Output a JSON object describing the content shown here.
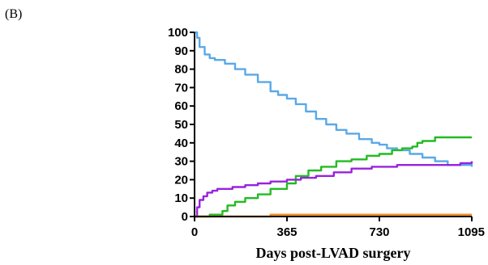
{
  "panel_label": "(B)",
  "chart_data": {
    "type": "line",
    "title": "",
    "xlabel": "Days post-LVAD surgery",
    "ylabel": "",
    "xlim": [
      0,
      1095
    ],
    "ylim": [
      0,
      100
    ],
    "x_ticks": [
      0,
      365,
      730,
      1095
    ],
    "y_ticks": [
      0,
      10,
      20,
      30,
      40,
      50,
      60,
      70,
      80,
      90,
      100
    ],
    "grid": false,
    "legend": "none",
    "series": [
      {
        "color": "#5aa8e8",
        "x": [
          0,
          10,
          20,
          40,
          60,
          80,
          120,
          160,
          200,
          250,
          300,
          330,
          365,
          400,
          440,
          480,
          520,
          560,
          600,
          650,
          700,
          730,
          760,
          800,
          850,
          900,
          950,
          1000,
          1050,
          1095
        ],
        "y": [
          100,
          97,
          92,
          88,
          86,
          85,
          83,
          80,
          77,
          73,
          68,
          66,
          64,
          61,
          57,
          53,
          50,
          47,
          45,
          42,
          40,
          39,
          37,
          36,
          34,
          32,
          30,
          28,
          28,
          27
        ]
      },
      {
        "color": "#22bb22",
        "x": [
          0,
          30,
          60,
          90,
          110,
          130,
          160,
          200,
          250,
          300,
          365,
          400,
          450,
          500,
          560,
          620,
          680,
          730,
          780,
          820,
          860,
          880,
          900,
          920,
          950,
          980,
          1020,
          1060,
          1095
        ],
        "y": [
          0,
          0,
          1,
          1,
          3,
          6,
          8,
          10,
          12,
          15,
          18,
          22,
          25,
          27,
          30,
          31,
          33,
          34,
          36,
          37,
          38,
          40,
          41,
          41,
          43,
          43,
          43,
          43,
          43
        ]
      },
      {
        "color": "#9922dd",
        "x": [
          0,
          10,
          20,
          35,
          50,
          70,
          90,
          120,
          150,
          200,
          250,
          300,
          365,
          420,
          480,
          550,
          620,
          700,
          760,
          800,
          900,
          1000,
          1050,
          1095
        ],
        "y": [
          0,
          5,
          9,
          11,
          13,
          14,
          15,
          15,
          16,
          17,
          18,
          19,
          20,
          21,
          22,
          24,
          26,
          27,
          27,
          28,
          28,
          28,
          29,
          30
        ]
      },
      {
        "color": "#f08c1e",
        "x": [
          0,
          300,
          1095
        ],
        "y": [
          0,
          1,
          1
        ]
      }
    ]
  }
}
